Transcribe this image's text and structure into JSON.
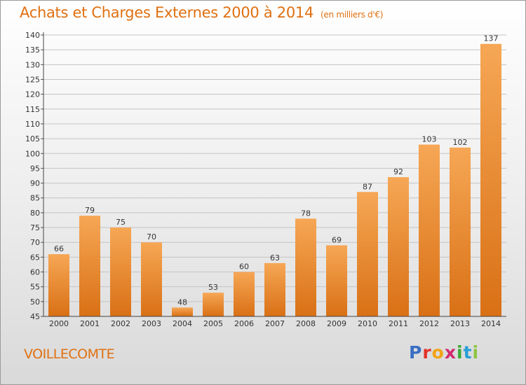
{
  "header": {
    "title": "Achats et Charges Externes 2000 à 2014",
    "unit": "(en milliers d'€)"
  },
  "commune": "VOILLECOMTE",
  "logo": {
    "letters": [
      "P",
      "r",
      "o",
      "x",
      "i",
      "t",
      "i"
    ],
    "colors": [
      "#3a6fc4",
      "#e2332b",
      "#f2a313",
      "#d2286f",
      "#3aaa35",
      "#2a9fd6",
      "#8cc63f"
    ]
  },
  "colors": {
    "title": "#e07010",
    "bar_light": "#f6a755",
    "bar_dark": "#d97015",
    "grid": "#c4c4c4",
    "text": "#333333"
  },
  "chart_data": {
    "type": "bar",
    "title": "Achats et Charges Externes 2000 à 2014",
    "subtitle": "(en milliers d'€)",
    "categories": [
      "2000",
      "2001",
      "2002",
      "2003",
      "2004",
      "2005",
      "2006",
      "2007",
      "2008",
      "2009",
      "2010",
      "2011",
      "2012",
      "2013",
      "2014"
    ],
    "values": [
      66,
      79,
      75,
      70,
      48,
      53,
      60,
      63,
      78,
      69,
      87,
      92,
      103,
      102,
      137
    ],
    "ylim": [
      45,
      140
    ],
    "yticks": [
      45,
      50,
      55,
      60,
      65,
      70,
      75,
      80,
      85,
      90,
      95,
      100,
      105,
      110,
      115,
      120,
      125,
      130,
      135,
      140
    ],
    "grid": true,
    "xlabel": "",
    "ylabel": ""
  }
}
